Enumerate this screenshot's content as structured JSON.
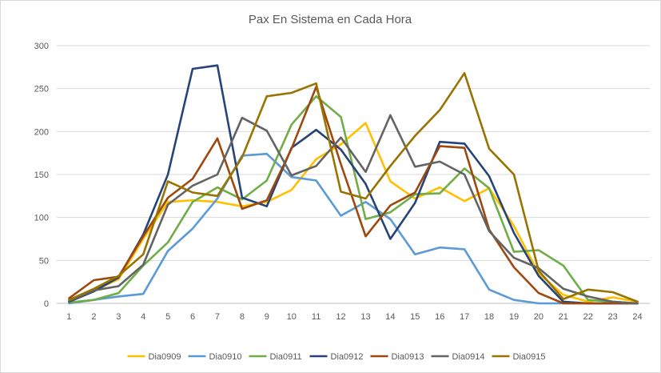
{
  "chart_data": {
    "type": "line",
    "title": "Pax En Sistema en Cada Hora",
    "xlabel": "",
    "ylabel": "",
    "x": [
      1,
      2,
      3,
      4,
      5,
      6,
      7,
      8,
      9,
      10,
      11,
      12,
      13,
      14,
      15,
      16,
      17,
      18,
      19,
      20,
      21,
      22,
      23,
      24
    ],
    "ylim": [
      0,
      300
    ],
    "yticks": [
      0,
      50,
      100,
      150,
      200,
      250,
      300
    ],
    "grid": "horizontal",
    "legend_position": "bottom",
    "series": [
      {
        "name": "Dia0909",
        "color": "#FFC000",
        "values": [
          2,
          15,
          28,
          75,
          118,
          120,
          118,
          113,
          118,
          132,
          168,
          185,
          210,
          142,
          122,
          135,
          119,
          134,
          90,
          35,
          10,
          2,
          7,
          2
        ]
      },
      {
        "name": "Dia0910",
        "color": "#5B9BD5",
        "values": [
          0,
          4,
          8,
          11,
          61,
          87,
          122,
          172,
          174,
          147,
          143,
          102,
          118,
          98,
          57,
          65,
          63,
          16,
          4,
          0,
          0,
          0,
          0,
          0
        ]
      },
      {
        "name": "Dia0911",
        "color": "#70AD47",
        "values": [
          1,
          4,
          12,
          44,
          71,
          118,
          135,
          121,
          143,
          208,
          241,
          217,
          98,
          106,
          127,
          128,
          157,
          134,
          60,
          62,
          44,
          4,
          2,
          0
        ]
      },
      {
        "name": "Dia0912",
        "color": "#264478",
        "values": [
          2,
          14,
          30,
          80,
          150,
          273,
          277,
          123,
          113,
          181,
          202,
          179,
          139,
          75,
          117,
          188,
          186,
          148,
          82,
          32,
          2,
          0,
          0,
          0
        ]
      },
      {
        "name": "Dia0913",
        "color": "#9E480E",
        "values": [
          6,
          27,
          31,
          78,
          123,
          145,
          192,
          110,
          120,
          180,
          252,
          162,
          78,
          114,
          129,
          183,
          181,
          86,
          42,
          12,
          0,
          0,
          0,
          0
        ]
      },
      {
        "name": "Dia0914",
        "color": "#636363",
        "values": [
          3,
          15,
          20,
          45,
          115,
          137,
          150,
          216,
          201,
          149,
          160,
          193,
          153,
          219,
          159,
          165,
          150,
          84,
          53,
          41,
          17,
          8,
          2,
          0
        ]
      },
      {
        "name": "Dia0915",
        "color": "#997300",
        "values": [
          4,
          17,
          32,
          57,
          142,
          129,
          125,
          170,
          241,
          245,
          256,
          130,
          122,
          160,
          195,
          225,
          268,
          180,
          150,
          38,
          5,
          16,
          13,
          2
        ]
      }
    ]
  }
}
